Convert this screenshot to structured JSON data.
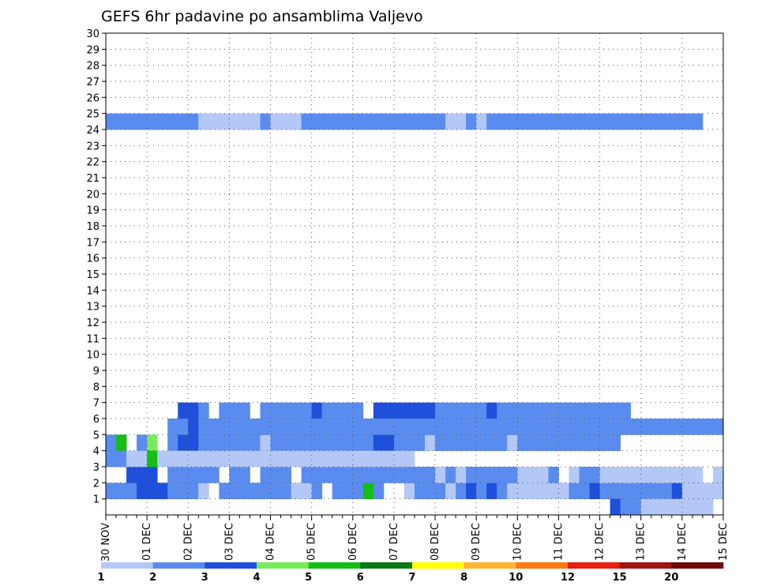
{
  "chart_data": {
    "type": "heatmap",
    "title": "GEFS 6hr padavine po ansamblima Valjevo",
    "xlabel": "",
    "ylabel": "",
    "x_tick_labels": [
      "30 NOV",
      "01 DEC",
      "02 DEC",
      "03 DEC",
      "04 DEC",
      "05 DEC",
      "06 DEC",
      "07 DEC",
      "08 DEC",
      "09 DEC",
      "10 DEC",
      "11 DEC",
      "12 DEC",
      "13 DEC",
      "14 DEC",
      "15 DEC"
    ],
    "y_tick_labels": [
      "1",
      "2",
      "3",
      "4",
      "5",
      "6",
      "7",
      "8",
      "9",
      "10",
      "11",
      "12",
      "13",
      "14",
      "15",
      "16",
      "17",
      "18",
      "19",
      "20",
      "21",
      "22",
      "23",
      "24",
      "25",
      "26",
      "27",
      "28",
      "29",
      "30"
    ],
    "y_range": [
      0,
      30
    ],
    "time_steps": 60,
    "x_range_steps": [
      0,
      60
    ],
    "grid": "dotted",
    "colorbar": {
      "placement": "bottom",
      "bounds": [
        "1",
        "2",
        "3",
        "4",
        "5",
        "6",
        "7",
        "8",
        "10",
        "12",
        "15",
        "20"
      ],
      "colors": [
        "#b4c8f8",
        "#5a8cf0",
        "#1e50dc",
        "#78eb5a",
        "#14be14",
        "#0a7814",
        "#ffff00",
        "#ffb432",
        "#ff7814",
        "#e61e14",
        "#a01414",
        "#6e0a0a"
      ]
    },
    "cells": [
      [
        1,
        0,
        1
      ],
      [
        1,
        1,
        1
      ],
      [
        1,
        2,
        1
      ],
      [
        1,
        3,
        2
      ],
      [
        1,
        4,
        2
      ],
      [
        1,
        5,
        2
      ],
      [
        1,
        6,
        1
      ],
      [
        1,
        7,
        1
      ],
      [
        1,
        8,
        1
      ],
      [
        1,
        9,
        0
      ],
      [
        1,
        11,
        1
      ],
      [
        1,
        12,
        1
      ],
      [
        1,
        13,
        1
      ],
      [
        1,
        14,
        1
      ],
      [
        1,
        15,
        1
      ],
      [
        1,
        16,
        1
      ],
      [
        1,
        17,
        1
      ],
      [
        1,
        18,
        0
      ],
      [
        1,
        19,
        0
      ],
      [
        1,
        20,
        1
      ],
      [
        1,
        22,
        1
      ],
      [
        1,
        23,
        1
      ],
      [
        1,
        24,
        1
      ],
      [
        1,
        25,
        4
      ],
      [
        1,
        26,
        1
      ],
      [
        1,
        29,
        0
      ],
      [
        1,
        30,
        1
      ],
      [
        1,
        31,
        1
      ],
      [
        1,
        32,
        1
      ],
      [
        1,
        33,
        0
      ],
      [
        1,
        34,
        1
      ],
      [
        1,
        35,
        2
      ],
      [
        1,
        36,
        1
      ],
      [
        1,
        37,
        2
      ],
      [
        1,
        38,
        1
      ],
      [
        1,
        39,
        0
      ],
      [
        1,
        40,
        0
      ],
      [
        1,
        41,
        0
      ],
      [
        1,
        42,
        0
      ],
      [
        1,
        43,
        0
      ],
      [
        1,
        44,
        0
      ],
      [
        1,
        45,
        1
      ],
      [
        1,
        46,
        1
      ],
      [
        1,
        47,
        2
      ],
      [
        1,
        48,
        1
      ],
      [
        1,
        49,
        1
      ],
      [
        1,
        50,
        1
      ],
      [
        1,
        51,
        1
      ],
      [
        1,
        52,
        1
      ],
      [
        1,
        53,
        1
      ],
      [
        1,
        54,
        1
      ],
      [
        1,
        55,
        2
      ],
      [
        1,
        56,
        0
      ],
      [
        1,
        57,
        0
      ],
      [
        1,
        58,
        0
      ],
      [
        1,
        59,
        0
      ],
      [
        0,
        49,
        2
      ],
      [
        0,
        50,
        1
      ],
      [
        0,
        51,
        1
      ],
      [
        0,
        52,
        0
      ],
      [
        0,
        53,
        0
      ],
      [
        0,
        54,
        0
      ],
      [
        0,
        55,
        0
      ],
      [
        0,
        56,
        0
      ],
      [
        0,
        57,
        0
      ],
      [
        0,
        58,
        0
      ],
      [
        4,
        0,
        1
      ],
      [
        4,
        1,
        4
      ],
      [
        4,
        3,
        1
      ],
      [
        4,
        4,
        3
      ],
      [
        4,
        6,
        1
      ],
      [
        4,
        7,
        2
      ],
      [
        4,
        8,
        2
      ],
      [
        4,
        9,
        1
      ],
      [
        4,
        10,
        1
      ],
      [
        4,
        11,
        1
      ],
      [
        4,
        12,
        1
      ],
      [
        4,
        13,
        1
      ],
      [
        4,
        14,
        1
      ],
      [
        4,
        15,
        0
      ],
      [
        4,
        16,
        1
      ],
      [
        4,
        17,
        1
      ],
      [
        4,
        18,
        1
      ],
      [
        4,
        19,
        1
      ],
      [
        4,
        20,
        1
      ],
      [
        4,
        21,
        1
      ],
      [
        4,
        22,
        1
      ],
      [
        4,
        23,
        1
      ],
      [
        4,
        24,
        1
      ],
      [
        4,
        25,
        1
      ],
      [
        4,
        26,
        2
      ],
      [
        4,
        27,
        2
      ],
      [
        4,
        28,
        1
      ],
      [
        4,
        29,
        1
      ],
      [
        4,
        30,
        1
      ],
      [
        4,
        31,
        0
      ],
      [
        4,
        32,
        1
      ],
      [
        4,
        33,
        1
      ],
      [
        4,
        34,
        1
      ],
      [
        4,
        35,
        1
      ],
      [
        4,
        36,
        1
      ],
      [
        4,
        37,
        1
      ],
      [
        4,
        38,
        1
      ],
      [
        4,
        39,
        0
      ],
      [
        4,
        40,
        1
      ],
      [
        4,
        41,
        1
      ],
      [
        4,
        42,
        1
      ],
      [
        4,
        43,
        1
      ],
      [
        4,
        44,
        1
      ],
      [
        4,
        45,
        1
      ],
      [
        4,
        46,
        1
      ],
      [
        4,
        47,
        1
      ],
      [
        4,
        48,
        1
      ],
      [
        4,
        49,
        1
      ],
      [
        2,
        2,
        2
      ],
      [
        2,
        3,
        2
      ],
      [
        2,
        4,
        2
      ],
      [
        2,
        6,
        1
      ],
      [
        2,
        7,
        1
      ],
      [
        2,
        8,
        1
      ],
      [
        2,
        9,
        1
      ],
      [
        2,
        10,
        1
      ],
      [
        2,
        12,
        1
      ],
      [
        2,
        13,
        1
      ],
      [
        2,
        15,
        1
      ],
      [
        2,
        16,
        1
      ],
      [
        2,
        17,
        1
      ],
      [
        2,
        19,
        1
      ],
      [
        2,
        20,
        1
      ],
      [
        2,
        21,
        1
      ],
      [
        2,
        22,
        1
      ],
      [
        2,
        23,
        1
      ],
      [
        2,
        24,
        1
      ],
      [
        2,
        25,
        1
      ],
      [
        2,
        26,
        1
      ],
      [
        2,
        27,
        1
      ],
      [
        2,
        28,
        1
      ],
      [
        2,
        29,
        1
      ],
      [
        2,
        30,
        1
      ],
      [
        2,
        31,
        1
      ],
      [
        2,
        32,
        0
      ],
      [
        2,
        33,
        1
      ],
      [
        2,
        34,
        0
      ],
      [
        2,
        35,
        1
      ],
      [
        2,
        36,
        1
      ],
      [
        2,
        37,
        1
      ],
      [
        2,
        38,
        1
      ],
      [
        2,
        39,
        1
      ],
      [
        2,
        40,
        0
      ],
      [
        2,
        41,
        0
      ],
      [
        2,
        42,
        0
      ],
      [
        2,
        43,
        1
      ],
      [
        2,
        45,
        0
      ],
      [
        2,
        46,
        1
      ],
      [
        2,
        47,
        1
      ],
      [
        2,
        48,
        0
      ],
      [
        2,
        49,
        0
      ],
      [
        2,
        50,
        0
      ],
      [
        2,
        51,
        0
      ],
      [
        2,
        52,
        0
      ],
      [
        2,
        53,
        0
      ],
      [
        2,
        54,
        0
      ],
      [
        2,
        55,
        0
      ],
      [
        2,
        56,
        0
      ],
      [
        2,
        57,
        0
      ],
      [
        2,
        59,
        0
      ],
      [
        3,
        0,
        1
      ],
      [
        3,
        1,
        1
      ],
      [
        3,
        2,
        0
      ],
      [
        3,
        3,
        0
      ],
      [
        3,
        4,
        4
      ],
      [
        3,
        5,
        0
      ],
      [
        3,
        6,
        0
      ],
      [
        3,
        7,
        0
      ],
      [
        3,
        8,
        0
      ],
      [
        3,
        9,
        0
      ],
      [
        3,
        10,
        0
      ],
      [
        3,
        11,
        0
      ],
      [
        3,
        12,
        0
      ],
      [
        3,
        13,
        0
      ],
      [
        3,
        14,
        0
      ],
      [
        3,
        15,
        0
      ],
      [
        3,
        16,
        0
      ],
      [
        3,
        17,
        0
      ],
      [
        3,
        18,
        0
      ],
      [
        3,
        19,
        0
      ],
      [
        3,
        20,
        0
      ],
      [
        3,
        21,
        0
      ],
      [
        3,
        22,
        0
      ],
      [
        3,
        23,
        0
      ],
      [
        3,
        24,
        0
      ],
      [
        3,
        25,
        0
      ],
      [
        3,
        26,
        0
      ],
      [
        3,
        27,
        0
      ],
      [
        3,
        28,
        0
      ],
      [
        3,
        29,
        0
      ],
      [
        24,
        0,
        1
      ],
      [
        24,
        1,
        1
      ],
      [
        24,
        2,
        1
      ],
      [
        24,
        3,
        1
      ],
      [
        24,
        4,
        1
      ],
      [
        24,
        5,
        1
      ],
      [
        24,
        6,
        1
      ],
      [
        24,
        7,
        1
      ],
      [
        24,
        8,
        1
      ],
      [
        24,
        9,
        0
      ],
      [
        24,
        10,
        0
      ],
      [
        24,
        11,
        0
      ],
      [
        24,
        12,
        0
      ],
      [
        24,
        13,
        0
      ],
      [
        24,
        14,
        0
      ],
      [
        24,
        15,
        1
      ],
      [
        24,
        16,
        0
      ],
      [
        24,
        17,
        0
      ],
      [
        24,
        18,
        0
      ],
      [
        24,
        19,
        1
      ],
      [
        24,
        20,
        1
      ],
      [
        24,
        21,
        1
      ],
      [
        24,
        22,
        1
      ],
      [
        24,
        23,
        1
      ],
      [
        24,
        24,
        1
      ],
      [
        24,
        25,
        1
      ],
      [
        24,
        26,
        1
      ],
      [
        24,
        27,
        1
      ],
      [
        24,
        28,
        1
      ],
      [
        24,
        29,
        1
      ],
      [
        24,
        30,
        1
      ],
      [
        24,
        31,
        1
      ],
      [
        24,
        32,
        1
      ],
      [
        24,
        33,
        0
      ],
      [
        24,
        34,
        0
      ],
      [
        24,
        35,
        1
      ],
      [
        24,
        36,
        0
      ],
      [
        24,
        37,
        1
      ],
      [
        24,
        38,
        1
      ],
      [
        24,
        39,
        1
      ],
      [
        24,
        40,
        1
      ],
      [
        24,
        41,
        1
      ],
      [
        24,
        42,
        1
      ],
      [
        24,
        43,
        1
      ],
      [
        24,
        44,
        1
      ],
      [
        24,
        45,
        1
      ],
      [
        24,
        46,
        1
      ],
      [
        24,
        47,
        1
      ],
      [
        24,
        48,
        1
      ],
      [
        24,
        49,
        1
      ],
      [
        24,
        50,
        1
      ],
      [
        24,
        51,
        1
      ],
      [
        24,
        52,
        1
      ],
      [
        24,
        53,
        1
      ],
      [
        24,
        54,
        1
      ],
      [
        24,
        55,
        1
      ],
      [
        24,
        56,
        1
      ],
      [
        24,
        57,
        1
      ],
      [
        6,
        7,
        2
      ],
      [
        6,
        8,
        2
      ],
      [
        6,
        9,
        1
      ],
      [
        6,
        11,
        1
      ],
      [
        6,
        12,
        1
      ],
      [
        6,
        13,
        1
      ],
      [
        6,
        15,
        1
      ],
      [
        6,
        16,
        1
      ],
      [
        6,
        17,
        1
      ],
      [
        6,
        18,
        1
      ],
      [
        6,
        19,
        1
      ],
      [
        6,
        20,
        2
      ],
      [
        6,
        21,
        1
      ],
      [
        6,
        22,
        1
      ],
      [
        6,
        23,
        1
      ],
      [
        6,
        24,
        1
      ],
      [
        6,
        26,
        2
      ],
      [
        6,
        27,
        2
      ],
      [
        6,
        28,
        2
      ],
      [
        6,
        29,
        2
      ],
      [
        6,
        30,
        2
      ],
      [
        6,
        31,
        2
      ],
      [
        6,
        32,
        1
      ],
      [
        6,
        33,
        1
      ],
      [
        6,
        34,
        1
      ],
      [
        6,
        35,
        1
      ],
      [
        6,
        36,
        1
      ],
      [
        6,
        37,
        2
      ],
      [
        6,
        38,
        1
      ],
      [
        6,
        39,
        1
      ],
      [
        6,
        40,
        1
      ],
      [
        6,
        41,
        1
      ],
      [
        6,
        42,
        1
      ],
      [
        6,
        43,
        1
      ],
      [
        6,
        44,
        1
      ],
      [
        6,
        45,
        1
      ],
      [
        6,
        46,
        1
      ],
      [
        6,
        47,
        1
      ],
      [
        6,
        48,
        1
      ],
      [
        6,
        49,
        1
      ],
      [
        6,
        50,
        1
      ],
      [
        5,
        6,
        1
      ],
      [
        5,
        7,
        1
      ],
      [
        5,
        8,
        2
      ],
      [
        5,
        9,
        1
      ],
      [
        5,
        10,
        1
      ],
      [
        5,
        11,
        1
      ],
      [
        5,
        12,
        1
      ],
      [
        5,
        13,
        1
      ],
      [
        5,
        14,
        1
      ],
      [
        5,
        15,
        1
      ],
      [
        5,
        16,
        1
      ],
      [
        5,
        17,
        1
      ],
      [
        5,
        18,
        1
      ],
      [
        5,
        19,
        1
      ],
      [
        5,
        20,
        1
      ],
      [
        5,
        21,
        1
      ],
      [
        5,
        22,
        1
      ],
      [
        5,
        23,
        1
      ],
      [
        5,
        24,
        1
      ],
      [
        5,
        25,
        1
      ],
      [
        5,
        26,
        1
      ],
      [
        5,
        27,
        1
      ],
      [
        5,
        28,
        1
      ],
      [
        5,
        29,
        1
      ],
      [
        5,
        30,
        1
      ],
      [
        5,
        31,
        1
      ],
      [
        5,
        32,
        1
      ],
      [
        5,
        33,
        1
      ],
      [
        5,
        34,
        1
      ],
      [
        5,
        35,
        1
      ],
      [
        5,
        36,
        1
      ],
      [
        5,
        37,
        1
      ],
      [
        5,
        38,
        1
      ],
      [
        5,
        39,
        1
      ],
      [
        5,
        40,
        1
      ],
      [
        5,
        41,
        1
      ],
      [
        5,
        42,
        1
      ],
      [
        5,
        43,
        1
      ],
      [
        5,
        44,
        1
      ],
      [
        5,
        45,
        1
      ],
      [
        5,
        46,
        1
      ],
      [
        5,
        47,
        1
      ],
      [
        5,
        48,
        1
      ],
      [
        5,
        49,
        1
      ],
      [
        5,
        50,
        1
      ],
      [
        5,
        51,
        1
      ],
      [
        5,
        52,
        1
      ],
      [
        5,
        53,
        1
      ],
      [
        5,
        54,
        1
      ],
      [
        5,
        55,
        1
      ],
      [
        5,
        56,
        1
      ],
      [
        5,
        57,
        1
      ],
      [
        5,
        58,
        1
      ],
      [
        5,
        59,
        1
      ]
    ]
  }
}
